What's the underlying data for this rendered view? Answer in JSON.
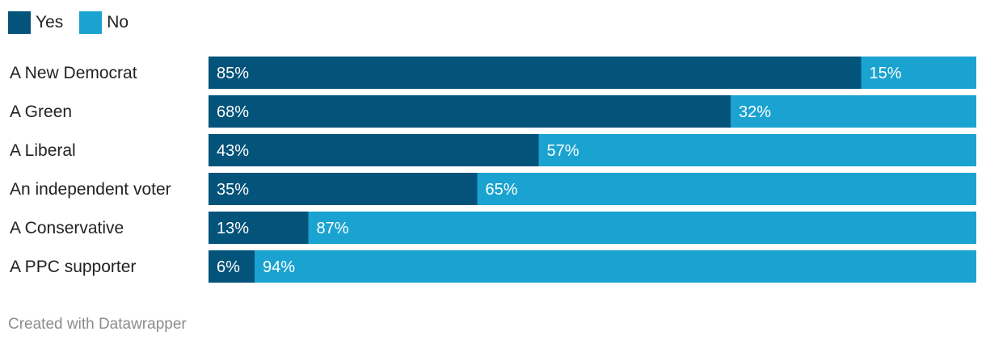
{
  "chart_data": {
    "type": "bar",
    "stacked": true,
    "orientation": "horizontal",
    "categories": [
      "A New Democrat",
      "A Green",
      "A Liberal",
      "An independent voter",
      "A Conservative",
      "A PPC supporter"
    ],
    "series": [
      {
        "name": "Yes",
        "color": "#04537a",
        "values": [
          85,
          68,
          43,
          35,
          13,
          6
        ]
      },
      {
        "name": "No",
        "color": "#1aa3d0",
        "values": [
          15,
          32,
          57,
          65,
          87,
          94
        ]
      }
    ],
    "value_suffix": "%",
    "xlim": [
      0,
      100
    ],
    "legend_position": "top-left",
    "grid": false
  },
  "credit": "Created with Datawrapper"
}
